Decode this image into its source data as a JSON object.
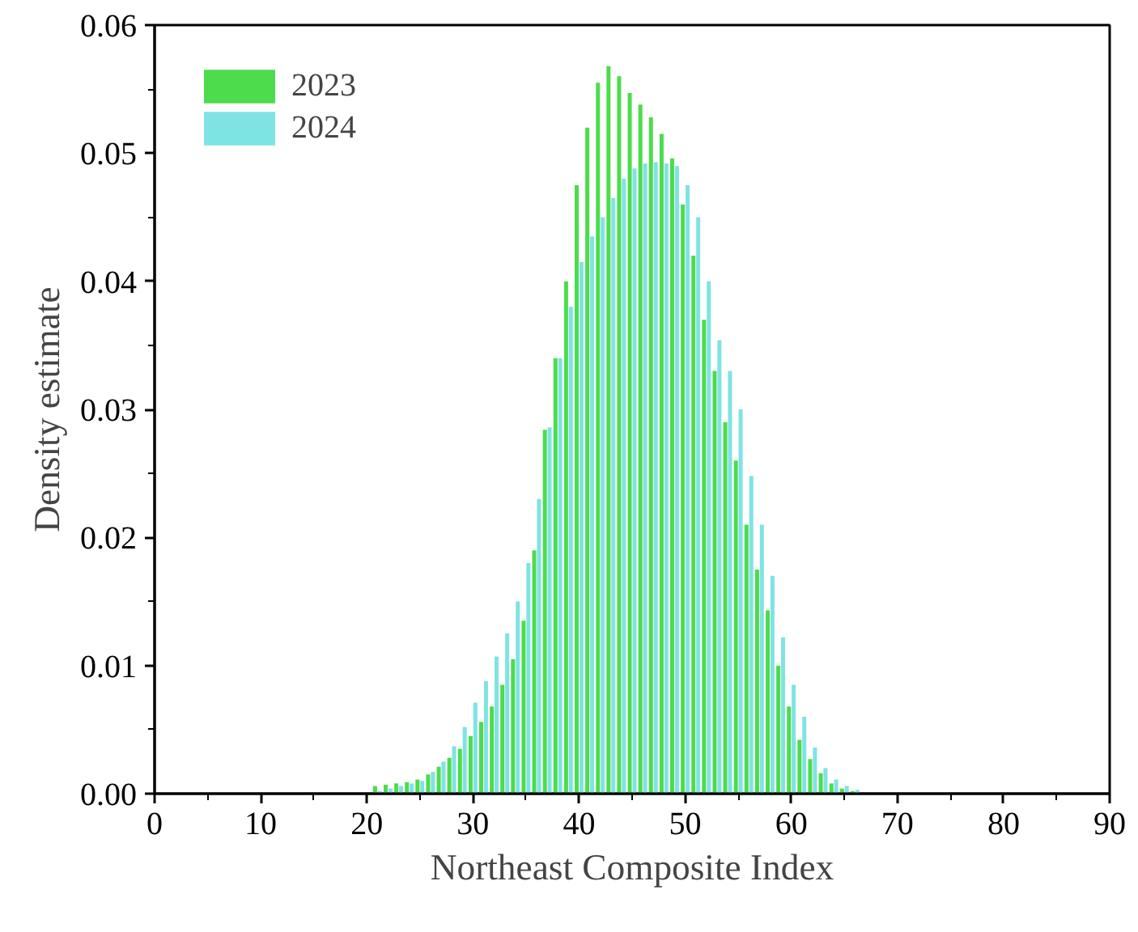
{
  "chart_data": {
    "type": "bar",
    "xlabel": "Northeast Composite Index",
    "ylabel": "Density estimate",
    "x": [
      21,
      22,
      23,
      24,
      25,
      26,
      27,
      28,
      29,
      30,
      31,
      32,
      33,
      34,
      35,
      36,
      37,
      38,
      39,
      40,
      41,
      42,
      43,
      44,
      45,
      46,
      47,
      48,
      49,
      50,
      51,
      52,
      53,
      54,
      55,
      56,
      57,
      58,
      59,
      60,
      61,
      62,
      63,
      64,
      65,
      66
    ],
    "series": [
      {
        "name": "2023",
        "color": "#4cdc4c",
        "values": [
          0.0006,
          0.0007,
          0.0008,
          0.0009,
          0.0011,
          0.0015,
          0.0021,
          0.0028,
          0.0035,
          0.0045,
          0.0056,
          0.0068,
          0.0085,
          0.0105,
          0.0135,
          0.019,
          0.0284,
          0.034,
          0.04,
          0.0475,
          0.052,
          0.0555,
          0.0568,
          0.056,
          0.0547,
          0.0538,
          0.0528,
          0.0515,
          0.0496,
          0.046,
          0.042,
          0.037,
          0.033,
          0.029,
          0.026,
          0.021,
          0.0175,
          0.0143,
          0.01,
          0.0068,
          0.0042,
          0.0027,
          0.0016,
          0.0008,
          0.0004,
          0.0002
        ]
      },
      {
        "name": "2024",
        "color": "#7fe3e3",
        "values": [
          0.0002,
          0.0004,
          0.0006,
          0.0008,
          0.001,
          0.0017,
          0.0025,
          0.0037,
          0.0052,
          0.0071,
          0.0088,
          0.0107,
          0.0125,
          0.015,
          0.018,
          0.023,
          0.0286,
          0.034,
          0.038,
          0.0415,
          0.0435,
          0.045,
          0.0465,
          0.048,
          0.0488,
          0.0492,
          0.0493,
          0.0492,
          0.049,
          0.0475,
          0.045,
          0.04,
          0.0354,
          0.033,
          0.03,
          0.0248,
          0.021,
          0.017,
          0.0122,
          0.0085,
          0.006,
          0.0036,
          0.002,
          0.0011,
          0.0006,
          0.0003
        ]
      }
    ],
    "xlim": [
      0,
      90
    ],
    "xticks": [
      0,
      10,
      20,
      30,
      40,
      50,
      60,
      70,
      80,
      90
    ],
    "ylim": [
      0,
      0.06
    ],
    "yticks": [
      {
        "value": 0,
        "label": "0.00"
      },
      {
        "value": 0.01,
        "label": "0.01"
      },
      {
        "value": 0.02,
        "label": "0.02"
      },
      {
        "value": 0.03,
        "label": "0.03"
      },
      {
        "value": 0.04,
        "label": "0.04"
      },
      {
        "value": 0.05,
        "label": "0.05"
      },
      {
        "value": 0.06,
        "label": "0.06"
      }
    ],
    "grid": false,
    "legend": "top left"
  }
}
